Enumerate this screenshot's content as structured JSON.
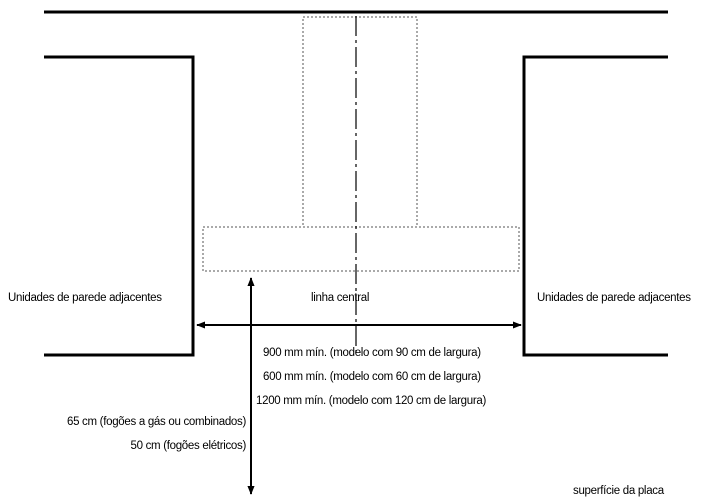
{
  "labels": {
    "left_units": "Unidades de parede adjacentes",
    "right_units": "Unidades de parede adjacentes",
    "centerline": "linha central",
    "width_900": "900 mm mín. (modelo com 90 cm de largura)",
    "width_600": "600 mm mín. (modelo com 60 cm de largura)",
    "width_1200": "1200 mm mín. (modelo com 120 cm de largura)",
    "height_gas": "65 cm (fogões a gás ou combinados)",
    "height_electric": "50 cm (fogões elétricos)",
    "hob_surface": "superfície da placa"
  },
  "colors": {
    "line": "#000000",
    "dashed": "#555555"
  }
}
